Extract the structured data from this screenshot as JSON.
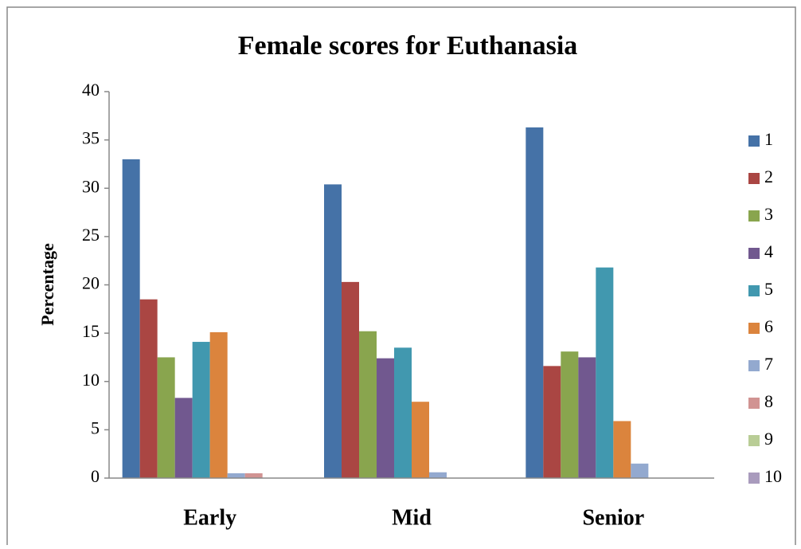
{
  "chart_data": {
    "type": "bar",
    "title": "Female scores for Euthanasia",
    "y_label": "Percentage",
    "categories": [
      "Early",
      "Mid",
      "Senior"
    ],
    "series": [
      {
        "name": "1",
        "color": "#4572a7",
        "values": [
          33.0,
          30.4,
          36.3
        ]
      },
      {
        "name": "2",
        "color": "#aa4643",
        "values": [
          18.5,
          20.3,
          11.6
        ]
      },
      {
        "name": "3",
        "color": "#89a54e",
        "values": [
          12.5,
          15.2,
          13.1
        ]
      },
      {
        "name": "4",
        "color": "#71588f",
        "values": [
          8.3,
          12.4,
          12.5
        ]
      },
      {
        "name": "5",
        "color": "#4198af",
        "values": [
          14.1,
          13.5,
          21.8
        ]
      },
      {
        "name": "6",
        "color": "#db843d",
        "values": [
          15.1,
          7.9,
          5.9
        ]
      },
      {
        "name": "7",
        "color": "#93a9cf",
        "values": [
          0.5,
          0.6,
          1.5
        ]
      },
      {
        "name": "8",
        "color": "#d19392",
        "values": [
          0.5,
          0,
          0
        ]
      },
      {
        "name": "9",
        "color": "#b9cd96",
        "values": [
          0,
          0,
          0
        ]
      },
      {
        "name": "10",
        "color": "#a99bbd",
        "values": [
          0,
          0,
          0
        ]
      }
    ],
    "ylim": [
      0,
      40
    ],
    "yticks": [
      0,
      5,
      10,
      15,
      20,
      25,
      30,
      35,
      40
    ],
    "legend": "right"
  }
}
